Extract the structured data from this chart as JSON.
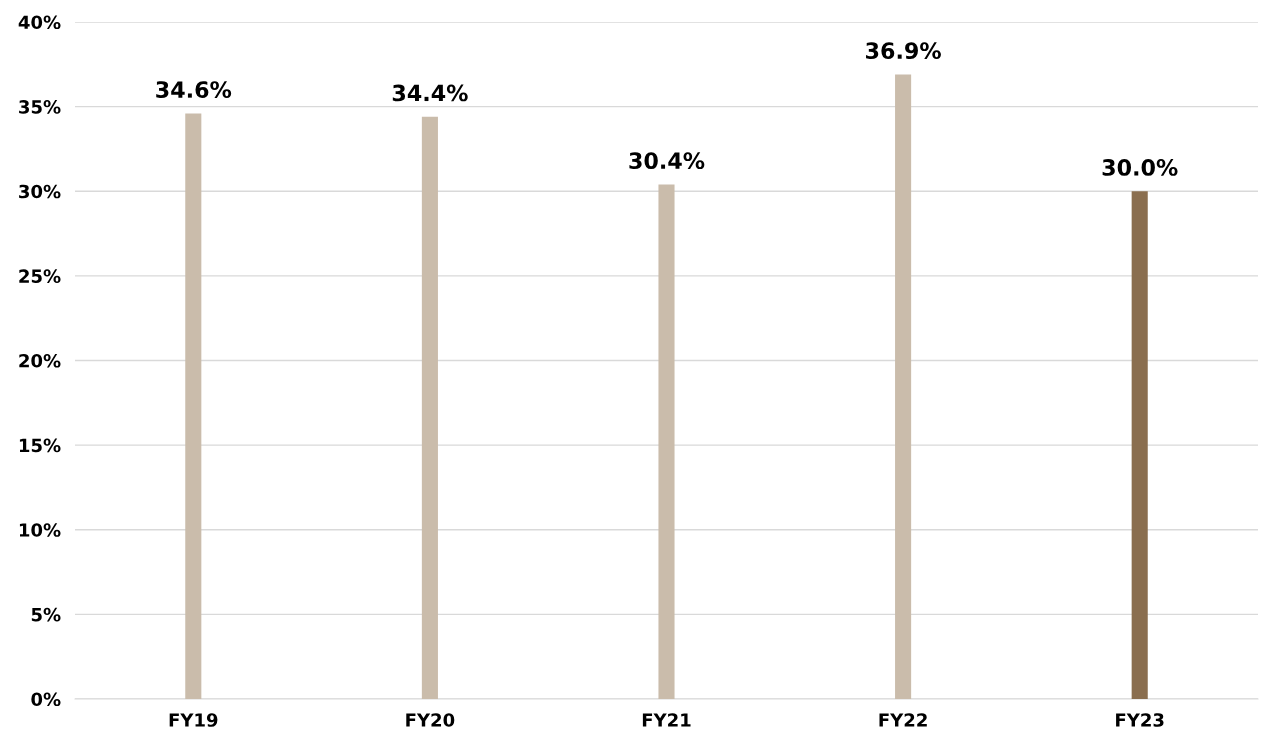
{
  "chart_data": {
    "type": "bar",
    "categories": [
      "FY19",
      "FY20",
      "FY21",
      "FY22",
      "FY23"
    ],
    "values": [
      34.6,
      34.4,
      30.4,
      36.9,
      30.0
    ],
    "colors": [
      "#cabcab",
      "#cabcab",
      "#cabcab",
      "#cabcab",
      "#8a6e4f"
    ],
    "value_labels": [
      "34.6%",
      "34.4%",
      "30.4%",
      "36.9%",
      "30.0%"
    ],
    "ylim": [
      0,
      40
    ],
    "yticks": [
      {
        "value": 0,
        "label": "0%"
      },
      {
        "value": 5,
        "label": "5%"
      },
      {
        "value": 10,
        "label": "10%"
      },
      {
        "value": 15,
        "label": "15%"
      },
      {
        "value": 20,
        "label": "20%"
      },
      {
        "value": 25,
        "label": "25%"
      },
      {
        "value": 30,
        "label": "30%"
      },
      {
        "value": 35,
        "label": "35%"
      },
      {
        "value": 40,
        "label": "40%"
      }
    ],
    "grid": "y"
  }
}
